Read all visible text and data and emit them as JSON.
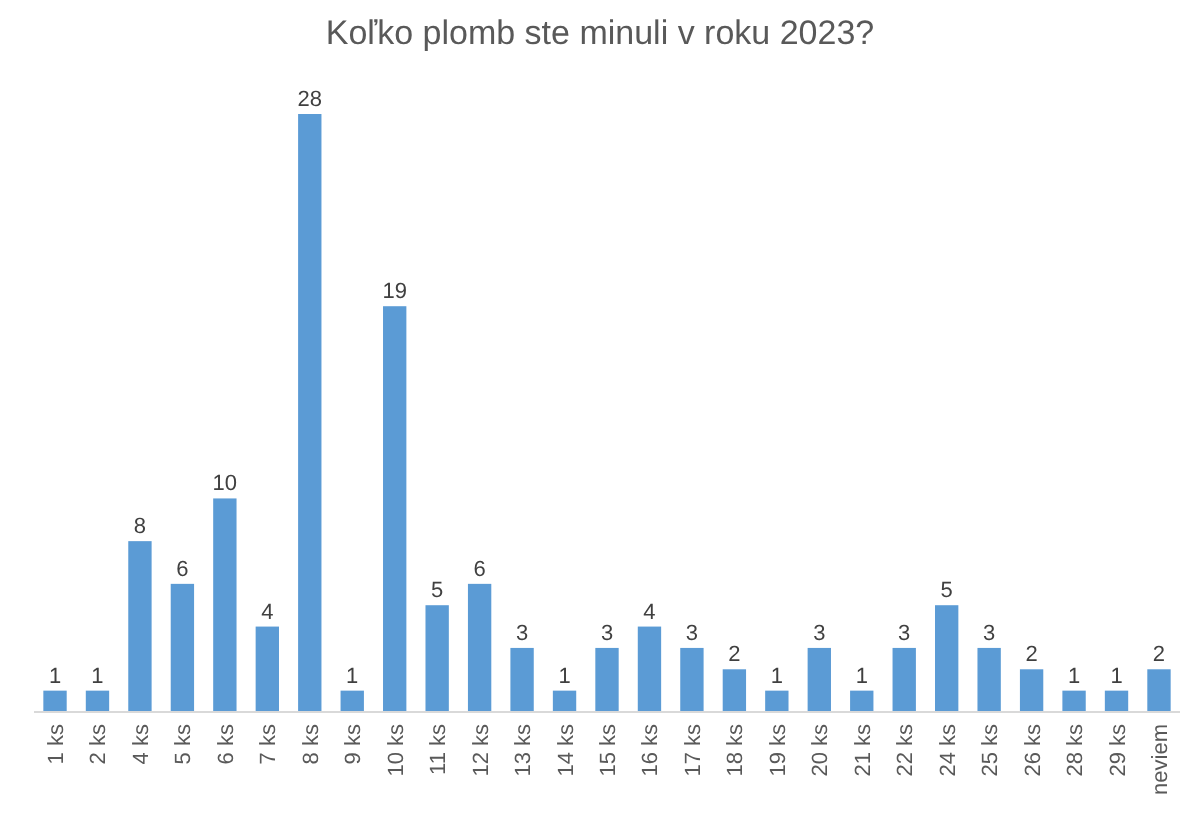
{
  "chart_data": {
    "type": "bar",
    "title": "Koľko plomb ste minuli v roku 2023?",
    "categories": [
      "1 ks",
      "2 ks",
      "4 ks",
      "5 ks",
      "6 ks",
      "7 ks",
      "8 ks",
      "9 ks",
      "10 ks",
      "11 ks",
      "12 ks",
      "13 ks",
      "14 ks",
      "15 ks",
      "16 ks",
      "17 ks",
      "18 ks",
      "19 ks",
      "20 ks",
      "21 ks",
      "22 ks",
      "24 ks",
      "25 ks",
      "26 ks",
      "28 ks",
      "29 ks",
      "neviem"
    ],
    "values": [
      1,
      1,
      8,
      6,
      10,
      4,
      28,
      1,
      19,
      5,
      6,
      3,
      1,
      3,
      4,
      3,
      2,
      1,
      3,
      1,
      3,
      5,
      3,
      2,
      1,
      1,
      2
    ],
    "color": "#5b9bd5",
    "data_labels": true
  }
}
